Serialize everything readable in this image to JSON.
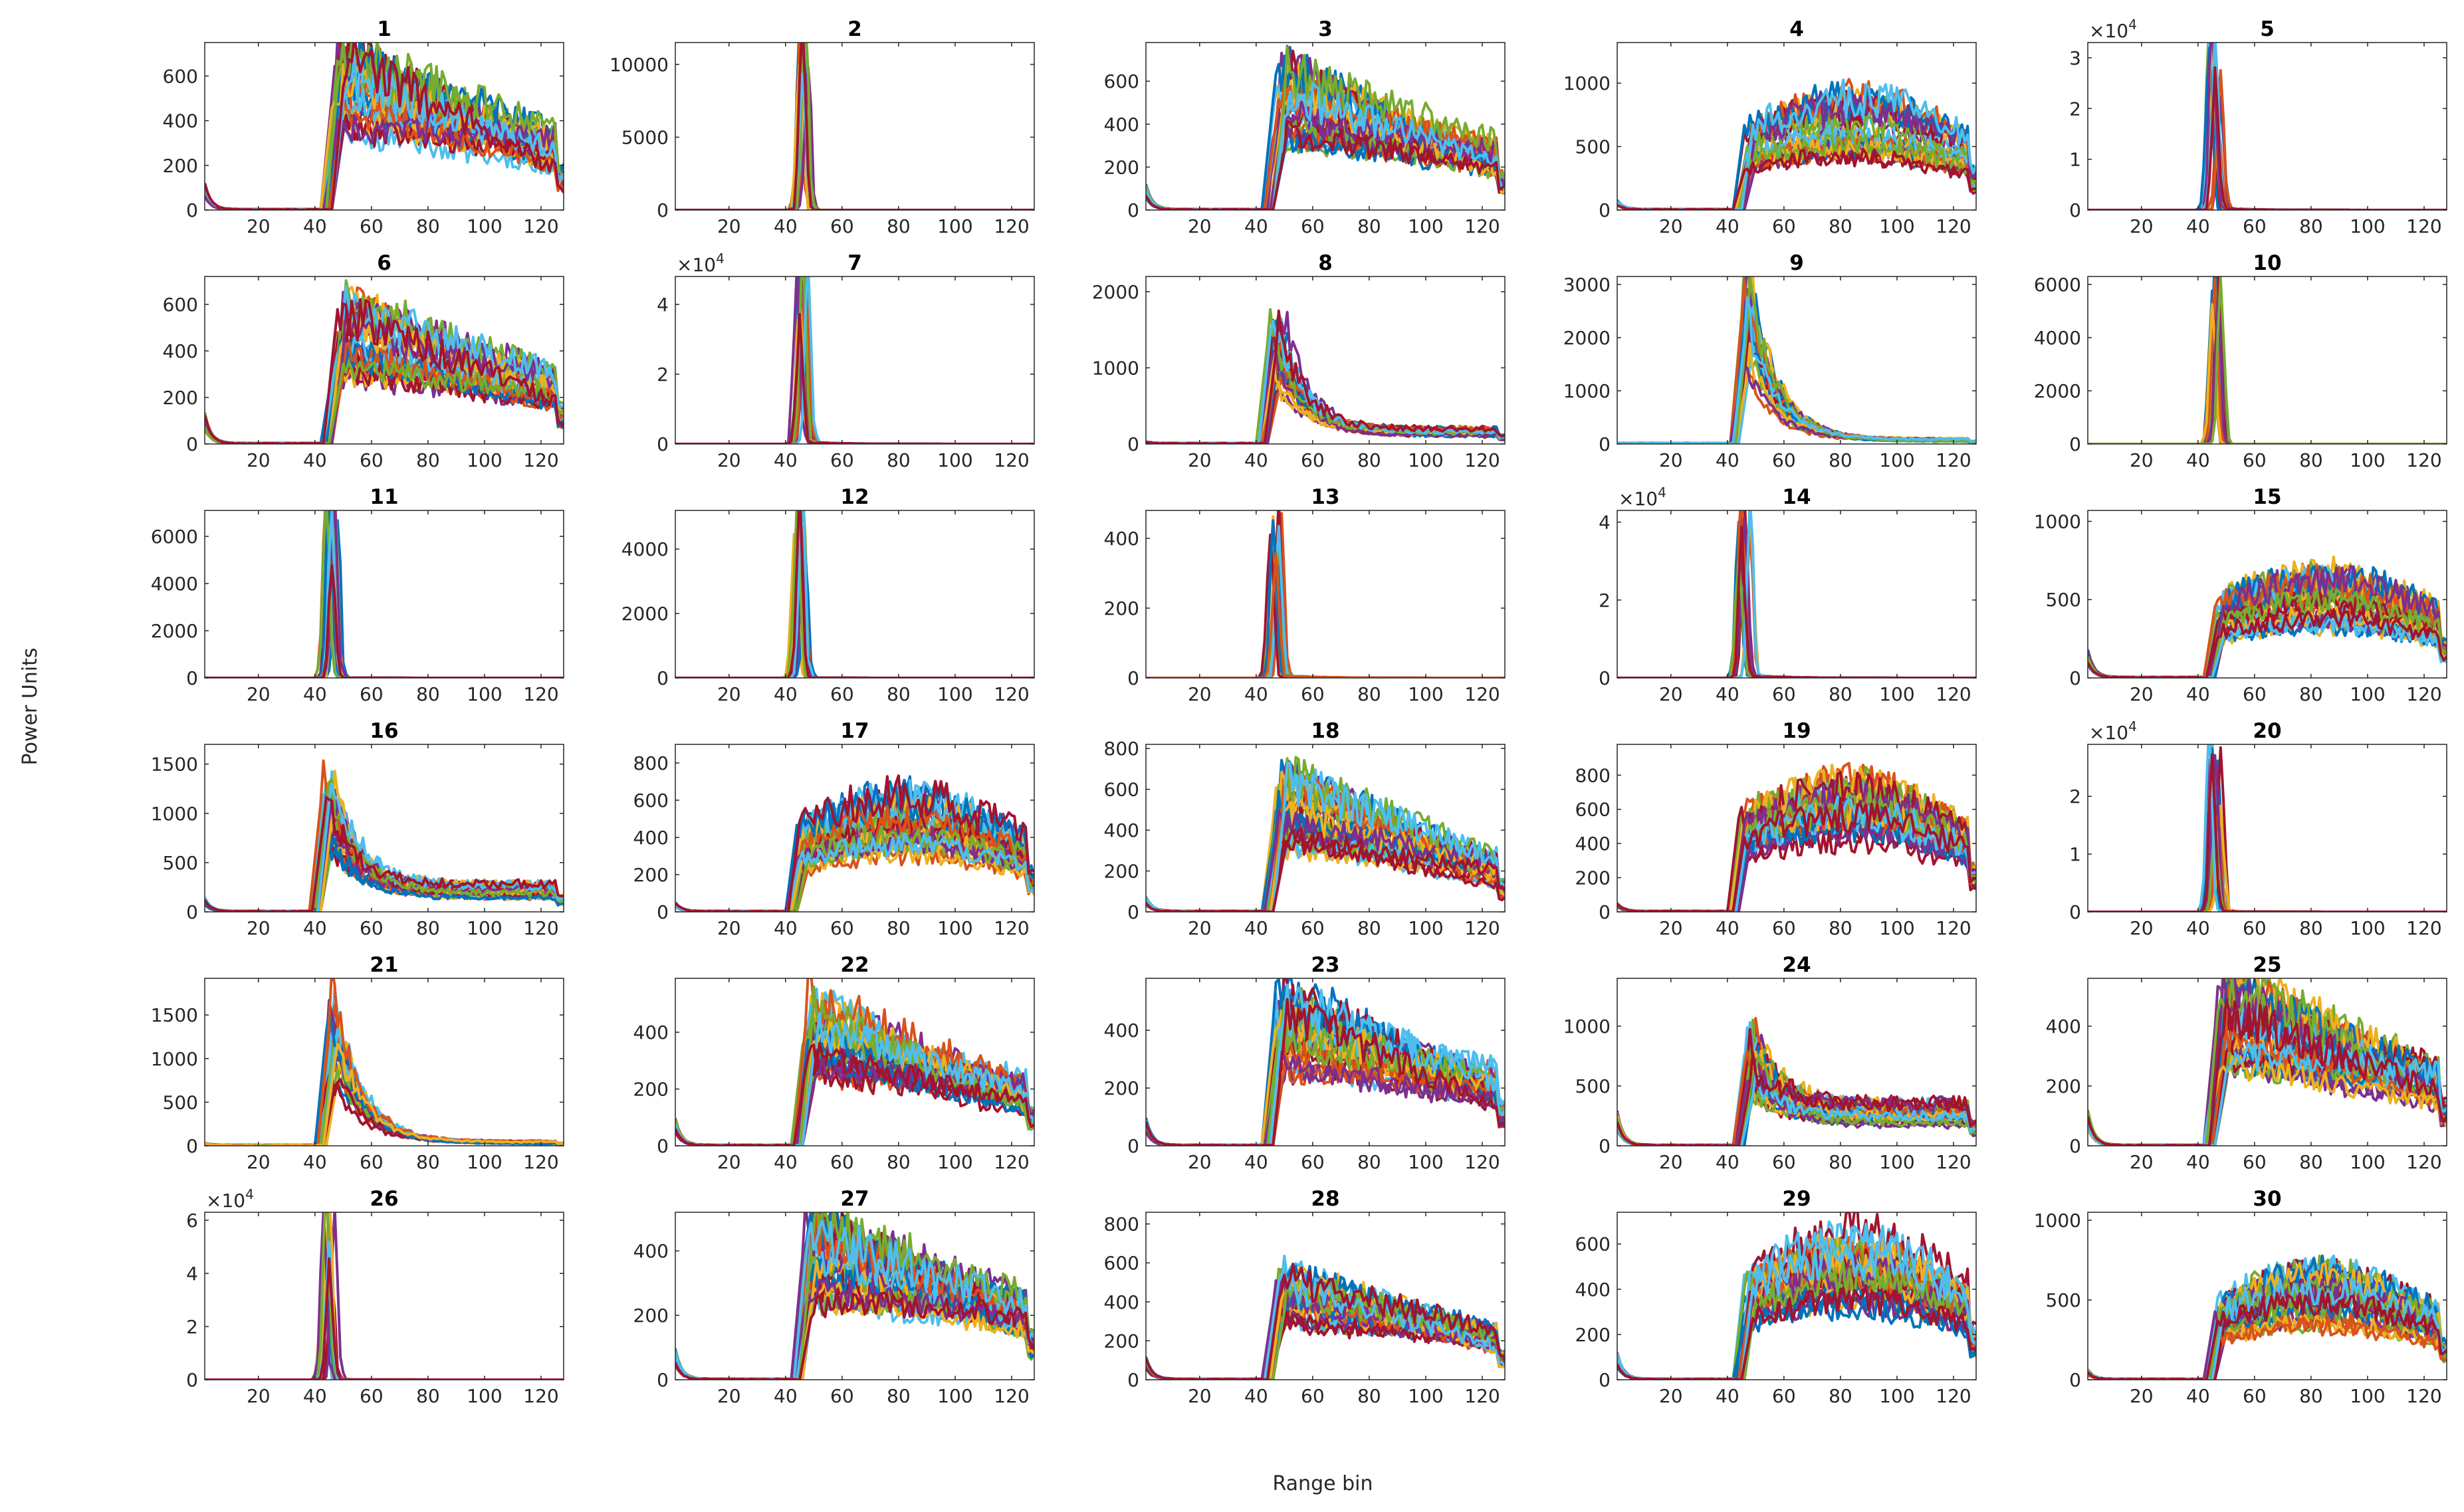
{
  "figure": {
    "ylabel": "Power Units",
    "xlabel": "Range bin",
    "colors": [
      "#0072BD",
      "#D95319",
      "#EDB120",
      "#7E2F8E",
      "#77AC30",
      "#4DBEEE",
      "#A2142F"
    ]
  },
  "chart_data": [
    {
      "type": "line",
      "title": "1",
      "ylim": [
        0,
        750
      ],
      "yticks": [
        0,
        200,
        400,
        600
      ],
      "exponent": null,
      "xlim": [
        1,
        128
      ],
      "xticks": [
        20,
        40,
        60,
        80,
        100,
        120
      ],
      "xlabel": "Range bin",
      "ylabel": "Power Units",
      "profile": "rise",
      "onset": 46,
      "peak": 600,
      "tail": 260,
      "start": 100,
      "series_count": 28
    },
    {
      "type": "line",
      "title": "2",
      "ylim": [
        0,
        11500
      ],
      "yticks": [
        0,
        5000,
        10000
      ],
      "exponent": null,
      "xlim": [
        1,
        128
      ],
      "xticks": [
        20,
        40,
        60,
        80,
        100,
        120
      ],
      "xlabel": "Range bin",
      "ylabel": "Power Units",
      "profile": "spike",
      "onset": 46,
      "peak": 11400,
      "tail": 0,
      "start": 0,
      "series_count": 14
    },
    {
      "type": "line",
      "title": "3",
      "ylim": [
        0,
        780
      ],
      "yticks": [
        0,
        200,
        400,
        600
      ],
      "exponent": null,
      "xlim": [
        1,
        128
      ],
      "xticks": [
        20,
        40,
        60,
        80,
        100,
        120
      ],
      "xlabel": "Range bin",
      "ylabel": "Power Units",
      "profile": "rise",
      "onset": 46,
      "peak": 560,
      "tail": 240,
      "start": 100,
      "series_count": 28
    },
    {
      "type": "line",
      "title": "4",
      "ylim": [
        0,
        1320
      ],
      "yticks": [
        0,
        500,
        1000
      ],
      "exponent": null,
      "xlim": [
        1,
        128
      ],
      "xticks": [
        20,
        40,
        60,
        80,
        100,
        120
      ],
      "xlabel": "Range bin",
      "ylabel": "Power Units",
      "profile": "broad",
      "onset": 46,
      "peak": 700,
      "tail": 380,
      "start": 60,
      "series_count": 28
    },
    {
      "type": "line",
      "title": "5",
      "ylim": [
        0,
        3.3
      ],
      "yticks": [
        0,
        1,
        2,
        3
      ],
      "exponent": "4",
      "xlim": [
        1,
        128
      ],
      "xticks": [
        20,
        40,
        60,
        80,
        100,
        120
      ],
      "xlabel": "Range bin",
      "ylabel": "Power Units",
      "profile": "spike",
      "onset": 46,
      "peak": 3.2,
      "tail": 0.03,
      "start": 0,
      "series_count": 14
    },
    {
      "type": "line",
      "title": "6",
      "ylim": [
        0,
        720
      ],
      "yticks": [
        0,
        200,
        400,
        600
      ],
      "exponent": null,
      "xlim": [
        1,
        128
      ],
      "xticks": [
        20,
        40,
        60,
        80,
        100,
        120
      ],
      "xlabel": "Range bin",
      "ylabel": "Power Units",
      "profile": "rise",
      "onset": 46,
      "peak": 520,
      "tail": 230,
      "start": 110,
      "series_count": 28
    },
    {
      "type": "line",
      "title": "7",
      "ylim": [
        0,
        4.8
      ],
      "yticks": [
        0,
        2,
        4
      ],
      "exponent": "4",
      "xlim": [
        1,
        128
      ],
      "xticks": [
        20,
        40,
        60,
        80,
        100,
        120
      ],
      "xlabel": "Range bin",
      "ylabel": "Power Units",
      "profile": "spike",
      "onset": 46,
      "peak": 4.7,
      "tail": 0.05,
      "start": 0,
      "series_count": 14
    },
    {
      "type": "line",
      "title": "8",
      "ylim": [
        0,
        2200
      ],
      "yticks": [
        0,
        1000,
        2000
      ],
      "exponent": null,
      "xlim": [
        1,
        128
      ],
      "xticks": [
        20,
        40,
        60,
        80,
        100,
        120
      ],
      "xlabel": "Range bin",
      "ylabel": "Power Units",
      "profile": "decay",
      "onset": 44,
      "peak": 1500,
      "tail": 160,
      "start": 20,
      "series_count": 28
    },
    {
      "type": "line",
      "title": "9",
      "ylim": [
        0,
        3150
      ],
      "yticks": [
        0,
        1000,
        2000,
        3000
      ],
      "exponent": null,
      "xlim": [
        1,
        128
      ],
      "xticks": [
        20,
        40,
        60,
        80,
        100,
        120
      ],
      "xlabel": "Range bin",
      "ylabel": "Power Units",
      "profile": "decay",
      "onset": 44,
      "peak": 2600,
      "tail": 80,
      "start": 0,
      "series_count": 20
    },
    {
      "type": "line",
      "title": "10",
      "ylim": [
        0,
        6300
      ],
      "yticks": [
        0,
        2000,
        4000,
        6000
      ],
      "exponent": null,
      "xlim": [
        1,
        128
      ],
      "xticks": [
        20,
        40,
        60,
        80,
        100,
        120
      ],
      "xlabel": "Range bin",
      "ylabel": "Power Units",
      "profile": "spike",
      "onset": 46,
      "peak": 6200,
      "tail": 0,
      "start": 0,
      "series_count": 12
    },
    {
      "type": "line",
      "title": "11",
      "ylim": [
        0,
        7100
      ],
      "yticks": [
        0,
        2000,
        4000,
        6000
      ],
      "exponent": null,
      "xlim": [
        1,
        128
      ],
      "xticks": [
        20,
        40,
        60,
        80,
        100,
        120
      ],
      "xlabel": "Range bin",
      "ylabel": "Power Units",
      "profile": "spike",
      "onset": 46,
      "peak": 7000,
      "tail": 10,
      "start": 0,
      "series_count": 14
    },
    {
      "type": "line",
      "title": "12",
      "ylim": [
        0,
        5200
      ],
      "yticks": [
        0,
        2000,
        4000
      ],
      "exponent": null,
      "xlim": [
        1,
        128
      ],
      "xticks": [
        20,
        40,
        60,
        80,
        100,
        120
      ],
      "xlabel": "Range bin",
      "ylabel": "Power Units",
      "profile": "spike",
      "onset": 45,
      "peak": 5100,
      "tail": 5,
      "start": 0,
      "series_count": 14
    },
    {
      "type": "line",
      "title": "13",
      "ylim": [
        0,
        480
      ],
      "yticks": [
        0,
        200,
        400
      ],
      "exponent": null,
      "xlim": [
        1,
        128
      ],
      "xticks": [
        20,
        40,
        60,
        80,
        100,
        120
      ],
      "xlabel": "Range bin",
      "ylabel": "Power Units",
      "profile": "spike",
      "onset": 47,
      "peak": 440,
      "tail": 6,
      "start": 0,
      "series_count": 16
    },
    {
      "type": "line",
      "title": "14",
      "ylim": [
        0,
        4.3
      ],
      "yticks": [
        0,
        2,
        4
      ],
      "exponent": "4",
      "xlim": [
        1,
        128
      ],
      "xticks": [
        20,
        40,
        60,
        80,
        100,
        120
      ],
      "xlabel": "Range bin",
      "ylabel": "Power Units",
      "profile": "spike",
      "onset": 46,
      "peak": 4.2,
      "tail": 0.06,
      "start": 0,
      "series_count": 14
    },
    {
      "type": "line",
      "title": "15",
      "ylim": [
        0,
        1070
      ],
      "yticks": [
        0,
        500,
        1000
      ],
      "exponent": null,
      "xlim": [
        1,
        128
      ],
      "xticks": [
        20,
        40,
        60,
        80,
        100,
        120
      ],
      "xlabel": "Range bin",
      "ylabel": "Power Units",
      "profile": "broad",
      "onset": 46,
      "peak": 520,
      "tail": 460,
      "start": 150,
      "series_count": 28
    },
    {
      "type": "line",
      "title": "16",
      "ylim": [
        0,
        1700
      ],
      "yticks": [
        0,
        500,
        1000,
        1500
      ],
      "exponent": null,
      "xlim": [
        1,
        128
      ],
      "xticks": [
        20,
        40,
        60,
        80,
        100,
        120
      ],
      "xlabel": "Range bin",
      "ylabel": "Power Units",
      "profile": "decay",
      "onset": 42,
      "peak": 1200,
      "tail": 220,
      "start": 120,
      "series_count": 28
    },
    {
      "type": "line",
      "title": "17",
      "ylim": [
        0,
        900
      ],
      "yticks": [
        0,
        200,
        400,
        600,
        800
      ],
      "exponent": null,
      "xlim": [
        1,
        128
      ],
      "xticks": [
        20,
        40,
        60,
        80,
        100,
        120
      ],
      "xlabel": "Range bin",
      "ylabel": "Power Units",
      "profile": "broad",
      "onset": 44,
      "peak": 520,
      "tail": 200,
      "start": 40,
      "series_count": 28
    },
    {
      "type": "line",
      "title": "18",
      "ylim": [
        0,
        820
      ],
      "yticks": [
        0,
        200,
        400,
        600,
        800
      ],
      "exponent": null,
      "xlim": [
        1,
        128
      ],
      "xticks": [
        20,
        40,
        60,
        80,
        100,
        120
      ],
      "xlabel": "Range bin",
      "ylabel": "Power Units",
      "profile": "rise",
      "onset": 46,
      "peak": 560,
      "tail": 200,
      "start": 60,
      "series_count": 28
    },
    {
      "type": "line",
      "title": "19",
      "ylim": [
        0,
        980
      ],
      "yticks": [
        0,
        200,
        400,
        600,
        800
      ],
      "exponent": null,
      "xlim": [
        1,
        128
      ],
      "xticks": [
        20,
        40,
        60,
        80,
        100,
        120
      ],
      "xlabel": "Range bin",
      "ylabel": "Power Units",
      "profile": "broad",
      "onset": 44,
      "peak": 620,
      "tail": 200,
      "start": 40,
      "series_count": 28
    },
    {
      "type": "line",
      "title": "20",
      "ylim": [
        0,
        2.9
      ],
      "yticks": [
        0,
        1,
        2
      ],
      "exponent": "4",
      "xlim": [
        1,
        128
      ],
      "xticks": [
        20,
        40,
        60,
        80,
        100,
        120
      ],
      "xlabel": "Range bin",
      "ylabel": "Power Units",
      "profile": "spike",
      "onset": 46,
      "peak": 2.8,
      "tail": 0.01,
      "start": 0,
      "series_count": 14
    },
    {
      "type": "line",
      "title": "21",
      "ylim": [
        0,
        1920
      ],
      "yticks": [
        0,
        500,
        1000,
        1500
      ],
      "exponent": null,
      "xlim": [
        1,
        128
      ],
      "xticks": [
        20,
        40,
        60,
        80,
        100,
        120
      ],
      "xlabel": "Range bin",
      "ylabel": "Power Units",
      "profile": "decay",
      "onset": 44,
      "peak": 1500,
      "tail": 40,
      "start": 20,
      "series_count": 24
    },
    {
      "type": "line",
      "title": "22",
      "ylim": [
        0,
        590
      ],
      "yticks": [
        0,
        200,
        400
      ],
      "exponent": null,
      "xlim": [
        1,
        128
      ],
      "xticks": [
        20,
        40,
        60,
        80,
        100,
        120
      ],
      "xlabel": "Range bin",
      "ylabel": "Power Units",
      "profile": "rise",
      "onset": 46,
      "peak": 440,
      "tail": 180,
      "start": 80,
      "series_count": 28
    },
    {
      "type": "line",
      "title": "23",
      "ylim": [
        0,
        580
      ],
      "yticks": [
        0,
        200,
        400
      ],
      "exponent": null,
      "xlim": [
        1,
        128
      ],
      "xticks": [
        20,
        40,
        60,
        80,
        100,
        120
      ],
      "xlabel": "Range bin",
      "ylabel": "Power Units",
      "profile": "rise",
      "onset": 46,
      "peak": 460,
      "tail": 200,
      "start": 80,
      "series_count": 28
    },
    {
      "type": "line",
      "title": "24",
      "ylim": [
        0,
        1400
      ],
      "yticks": [
        0,
        500,
        1000
      ],
      "exponent": null,
      "xlim": [
        1,
        128
      ],
      "xticks": [
        20,
        40,
        60,
        80,
        100,
        120
      ],
      "xlabel": "Range bin",
      "ylabel": "Power Units",
      "profile": "decay",
      "onset": 46,
      "peak": 820,
      "tail": 280,
      "start": 240,
      "series_count": 28
    },
    {
      "type": "line",
      "title": "25",
      "ylim": [
        0,
        560
      ],
      "yticks": [
        0,
        200,
        400
      ],
      "exponent": null,
      "xlim": [
        1,
        128
      ],
      "xticks": [
        20,
        40,
        60,
        80,
        100,
        120
      ],
      "xlabel": "Range bin",
      "ylabel": "Power Units",
      "profile": "rise",
      "onset": 46,
      "peak": 470,
      "tail": 210,
      "start": 100,
      "series_count": 28
    },
    {
      "type": "line",
      "title": "26",
      "ylim": [
        0,
        6.3
      ],
      "yticks": [
        0,
        2,
        4,
        6
      ],
      "exponent": "4",
      "xlim": [
        1,
        128
      ],
      "xticks": [
        20,
        40,
        60,
        80,
        100,
        120
      ],
      "xlabel": "Range bin",
      "ylabel": "Power Units",
      "profile": "spike",
      "onset": 45,
      "peak": 6.2,
      "tail": 0.02,
      "start": 0,
      "series_count": 14
    },
    {
      "type": "line",
      "title": "27",
      "ylim": [
        0,
        520
      ],
      "yticks": [
        0,
        200,
        400
      ],
      "exponent": null,
      "xlim": [
        1,
        128
      ],
      "xticks": [
        20,
        40,
        60,
        80,
        100,
        120
      ],
      "xlabel": "Range bin",
      "ylabel": "Power Units",
      "profile": "rise",
      "onset": 46,
      "peak": 430,
      "tail": 200,
      "start": 80,
      "series_count": 28
    },
    {
      "type": "line",
      "title": "28",
      "ylim": [
        0,
        860
      ],
      "yticks": [
        0,
        200,
        400,
        600,
        800
      ],
      "exponent": null,
      "xlim": [
        1,
        128
      ],
      "xticks": [
        20,
        40,
        60,
        80,
        100,
        120
      ],
      "xlabel": "Range bin",
      "ylabel": "Power Units",
      "profile": "rise",
      "onset": 46,
      "peak": 480,
      "tail": 200,
      "start": 100,
      "series_count": 28
    },
    {
      "type": "line",
      "title": "29",
      "ylim": [
        0,
        740
      ],
      "yticks": [
        0,
        200,
        400,
        600
      ],
      "exponent": null,
      "xlim": [
        1,
        128
      ],
      "xticks": [
        20,
        40,
        60,
        80,
        100,
        120
      ],
      "xlabel": "Range bin",
      "ylabel": "Power Units",
      "profile": "broad",
      "onset": 46,
      "peak": 520,
      "tail": 260,
      "start": 100,
      "series_count": 28
    },
    {
      "type": "line",
      "title": "30",
      "ylim": [
        0,
        1050
      ],
      "yticks": [
        0,
        500,
        1000
      ],
      "exponent": null,
      "xlim": [
        1,
        128
      ],
      "xticks": [
        20,
        40,
        60,
        80,
        100,
        120
      ],
      "xlabel": "Range bin",
      "ylabel": "Power Units",
      "profile": "broad",
      "onset": 46,
      "peak": 560,
      "tail": 260,
      "start": 50,
      "series_count": 28
    }
  ]
}
